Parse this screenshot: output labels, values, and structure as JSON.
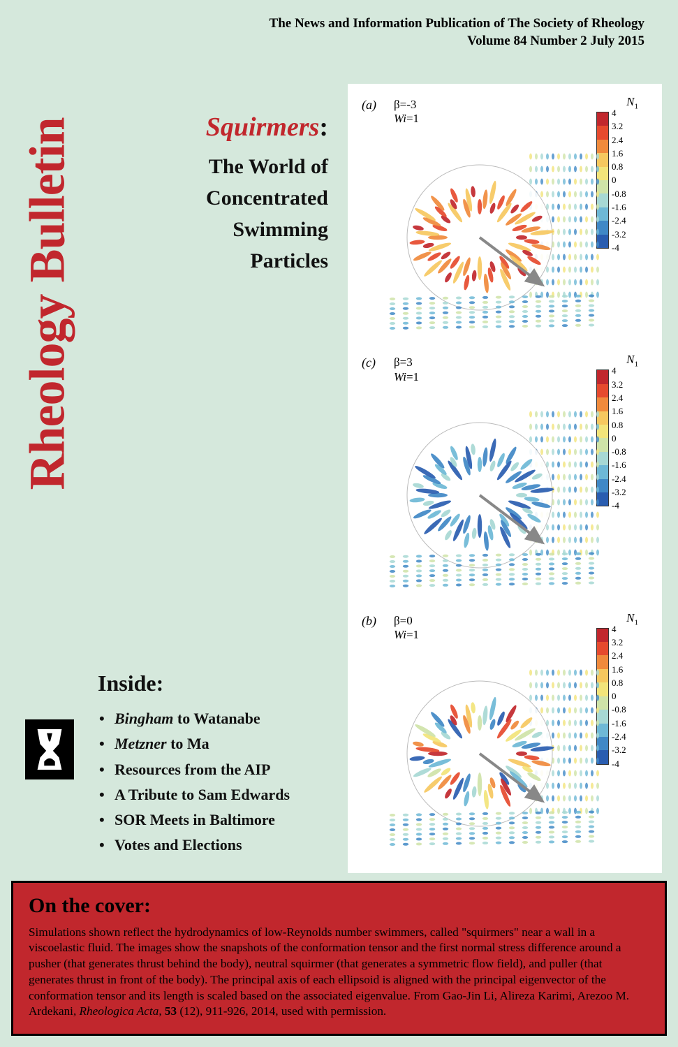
{
  "header": {
    "line1": "The News and Information Publication of The Society of Rheology",
    "line2": "Volume 84 Number 2 July 2015"
  },
  "vertical_title": "Rheology Bulletin",
  "feature": {
    "main_word": "Squirmers",
    "colon": ":",
    "subtitle_lines": [
      "The World of",
      "Concentrated",
      "Swimming",
      "Particles"
    ]
  },
  "inside": {
    "heading": "Inside:",
    "items": [
      {
        "prefix_italic": "Bingham",
        "rest": " to Watanabe"
      },
      {
        "prefix_italic": "Metzner",
        "rest": " to Ma"
      },
      {
        "prefix_italic": "",
        "rest": "Resources from the AIP"
      },
      {
        "prefix_italic": "",
        "rest": "A Tribute to Sam Edwards"
      },
      {
        "prefix_italic": "",
        "rest": "SOR Meets in Baltimore"
      },
      {
        "prefix_italic": "",
        "rest": "Votes and Elections"
      }
    ]
  },
  "figures": {
    "colorbar_title": "N",
    "colorbar_sub": "1",
    "tick_labels": [
      "4",
      "3.2",
      "2.4",
      "1.6",
      "0.8",
      "0",
      "-0.8",
      "-1.6",
      "-2.4",
      "-3.2",
      "-4"
    ],
    "colorbar_colors": [
      "#c1272d",
      "#e64a2e",
      "#f08a3c",
      "#f6c85f",
      "#f2e47a",
      "#cfe3a8",
      "#a7d8d4",
      "#6eb8d6",
      "#4088c6",
      "#2a5db0"
    ],
    "panels": [
      {
        "label": "(a)",
        "beta": "β=-3",
        "wi": "Wi=1",
        "dominant": "warm"
      },
      {
        "label": "(c)",
        "beta": "β=3",
        "wi": "Wi=1",
        "dominant": "cool"
      },
      {
        "label": "(b)",
        "beta": "β=0",
        "wi": "Wi=1",
        "dominant": "mixed"
      }
    ]
  },
  "cover": {
    "heading": "On the cover:",
    "text_pre": "Simulations shown reflect the hydrodynamics of low-Reynolds number swimmers, called \"squirmers\" near a wall in a viscoelastic fluid. The images show the snapshots of the conformation tensor and the first normal stress difference around a pusher (that generates thrust behind the body), neutral squirmer (that generates a symmetric flow field), and puller (that generates thrust in front of the body).  The principal axis of each ellipsoid is aligned with the principal eigenvector of the conformation tensor and its length is scaled based on the associated eigenvalue.  From Gao-Jin Li, Alireza Karimi, Arezoo M. Ardekani, ",
    "journal": "Rheologica Acta",
    "text_mid": ", ",
    "volume": "53",
    "text_post": " (12), 911-926, 2014, used with permission."
  },
  "colors": {
    "page_bg": "#d5e8dc",
    "title_red": "#c1272d",
    "cover_bg": "#c1272d",
    "cover_border": "#000000"
  }
}
